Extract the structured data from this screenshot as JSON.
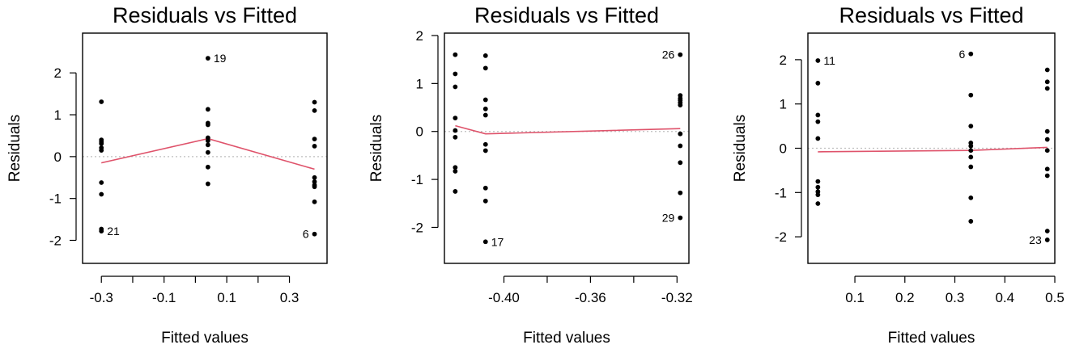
{
  "chart_data": [
    {
      "type": "scatter",
      "title": "Residuals vs Fitted",
      "xlabel": "Fitted values",
      "ylabel": "Residuals",
      "xlim": [
        -0.36,
        0.42
      ],
      "ylim": [
        -2.55,
        2.95
      ],
      "xticks": [
        -0.3,
        -0.2,
        -0.1,
        0.0,
        0.1,
        0.2,
        0.3
      ],
      "xtick_labels": [
        "-0.3",
        "",
        "-0.1",
        "",
        "0.1",
        "",
        "0.3"
      ],
      "yticks": [
        -2,
        -1,
        0,
        1,
        2
      ],
      "ytick_labels": [
        "-2",
        "-1",
        "0",
        "1",
        "2"
      ],
      "grid": false,
      "reference_line_y": 0,
      "points": [
        {
          "x": -0.3,
          "y": 1.31
        },
        {
          "x": -0.3,
          "y": 0.4
        },
        {
          "x": -0.3,
          "y": 0.35
        },
        {
          "x": -0.3,
          "y": 0.31
        },
        {
          "x": -0.3,
          "y": 0.21
        },
        {
          "x": -0.3,
          "y": 0.15
        },
        {
          "x": -0.3,
          "y": -0.62
        },
        {
          "x": -0.3,
          "y": -0.9
        },
        {
          "x": -0.3,
          "y": -1.73
        },
        {
          "x": -0.3,
          "y": -1.78
        },
        {
          "x": 0.04,
          "y": 2.35
        },
        {
          "x": 0.04,
          "y": 1.13
        },
        {
          "x": 0.04,
          "y": 0.8
        },
        {
          "x": 0.04,
          "y": 0.76
        },
        {
          "x": 0.04,
          "y": 0.45
        },
        {
          "x": 0.04,
          "y": 0.38
        },
        {
          "x": 0.04,
          "y": 0.28
        },
        {
          "x": 0.04,
          "y": 0.1
        },
        {
          "x": 0.04,
          "y": -0.25
        },
        {
          "x": 0.04,
          "y": -0.65
        },
        {
          "x": 0.38,
          "y": 1.3
        },
        {
          "x": 0.38,
          "y": 1.1
        },
        {
          "x": 0.38,
          "y": 0.42
        },
        {
          "x": 0.38,
          "y": 0.25
        },
        {
          "x": 0.38,
          "y": -0.5
        },
        {
          "x": 0.38,
          "y": -0.6
        },
        {
          "x": 0.38,
          "y": -0.68
        },
        {
          "x": 0.38,
          "y": -0.72
        },
        {
          "x": 0.38,
          "y": -1.08
        },
        {
          "x": 0.38,
          "y": -1.85
        }
      ],
      "smooth_line": [
        {
          "x": -0.3,
          "y": -0.15
        },
        {
          "x": 0.04,
          "y": 0.43
        },
        {
          "x": 0.38,
          "y": -0.3
        }
      ],
      "annotations": [
        {
          "text": "19",
          "x": 0.04,
          "y": 2.35,
          "side": "right"
        },
        {
          "text": "21",
          "x": -0.3,
          "y": -1.78,
          "side": "right"
        },
        {
          "text": "6",
          "x": 0.38,
          "y": -1.85,
          "side": "left"
        }
      ]
    },
    {
      "type": "scatter",
      "title": "Residuals vs Fitted",
      "xlabel": "Fitted values",
      "ylabel": "Residuals",
      "xlim": [
        -0.4275,
        -0.3145
      ],
      "ylim": [
        -2.75,
        2.05
      ],
      "xticks": [
        -0.4,
        -0.38,
        -0.36,
        -0.34,
        -0.32
      ],
      "xtick_labels": [
        "-0.40",
        "",
        "-0.36",
        "",
        "-0.32"
      ],
      "yticks": [
        -2,
        -1,
        0,
        1,
        2
      ],
      "ytick_labels": [
        "-2",
        "-1",
        "0",
        "1",
        "2"
      ],
      "grid": false,
      "reference_line_y": 0,
      "points": [
        {
          "x": -0.4225,
          "y": 1.6
        },
        {
          "x": -0.4225,
          "y": 1.2
        },
        {
          "x": -0.4225,
          "y": 0.93
        },
        {
          "x": -0.4225,
          "y": 0.28
        },
        {
          "x": -0.4225,
          "y": 0.02
        },
        {
          "x": -0.4225,
          "y": -0.12
        },
        {
          "x": -0.4225,
          "y": -0.75
        },
        {
          "x": -0.4225,
          "y": -0.83
        },
        {
          "x": -0.4225,
          "y": -1.25
        },
        {
          "x": -0.4085,
          "y": 1.58
        },
        {
          "x": -0.4085,
          "y": 1.32
        },
        {
          "x": -0.4085,
          "y": 0.66
        },
        {
          "x": -0.4085,
          "y": 0.47
        },
        {
          "x": -0.4085,
          "y": 0.34
        },
        {
          "x": -0.4085,
          "y": -0.27
        },
        {
          "x": -0.4085,
          "y": -0.4
        },
        {
          "x": -0.4085,
          "y": -1.18
        },
        {
          "x": -0.4085,
          "y": -1.45
        },
        {
          "x": -0.4085,
          "y": -2.3
        },
        {
          "x": -0.3185,
          "y": 1.6
        },
        {
          "x": -0.3185,
          "y": 0.75
        },
        {
          "x": -0.3185,
          "y": 0.69
        },
        {
          "x": -0.3185,
          "y": 0.65
        },
        {
          "x": -0.3185,
          "y": 0.6
        },
        {
          "x": -0.3185,
          "y": 0.55
        },
        {
          "x": -0.3185,
          "y": -0.05
        },
        {
          "x": -0.3185,
          "y": -0.3
        },
        {
          "x": -0.3185,
          "y": -0.65
        },
        {
          "x": -0.3185,
          "y": -1.28
        },
        {
          "x": -0.3185,
          "y": -1.8
        }
      ],
      "smooth_line": [
        {
          "x": -0.4225,
          "y": 0.12
        },
        {
          "x": -0.4085,
          "y": -0.05
        },
        {
          "x": -0.3185,
          "y": 0.06
        }
      ],
      "annotations": [
        {
          "text": "26",
          "x": -0.3185,
          "y": 1.6,
          "side": "left"
        },
        {
          "text": "17",
          "x": -0.4085,
          "y": -2.3,
          "side": "right"
        },
        {
          "text": "29",
          "x": -0.3185,
          "y": -1.8,
          "side": "left"
        }
      ]
    },
    {
      "type": "scatter",
      "title": "Residuals vs Fitted",
      "xlabel": "Fitted values",
      "ylabel": "Residuals",
      "xlim": [
        0.006,
        0.5
      ],
      "ylim": [
        -2.6,
        2.6
      ],
      "xticks": [
        0.1,
        0.2,
        0.3,
        0.4,
        0.5
      ],
      "xtick_labels": [
        "0.1",
        "0.2",
        "0.3",
        "0.4",
        "0.5"
      ],
      "yticks": [
        -2,
        -1,
        0,
        1,
        2
      ],
      "ytick_labels": [
        "-2",
        "-1",
        "0",
        "1",
        "2"
      ],
      "grid": false,
      "reference_line_y": 0,
      "points": [
        {
          "x": 0.026,
          "y": 1.98
        },
        {
          "x": 0.026,
          "y": 1.47
        },
        {
          "x": 0.026,
          "y": 0.75
        },
        {
          "x": 0.026,
          "y": 0.6
        },
        {
          "x": 0.026,
          "y": 0.22
        },
        {
          "x": 0.026,
          "y": -0.75
        },
        {
          "x": 0.026,
          "y": -0.88
        },
        {
          "x": 0.026,
          "y": -0.98
        },
        {
          "x": 0.026,
          "y": -1.05
        },
        {
          "x": 0.026,
          "y": -1.25
        },
        {
          "x": 0.332,
          "y": 2.13
        },
        {
          "x": 0.332,
          "y": 1.2
        },
        {
          "x": 0.332,
          "y": 0.5
        },
        {
          "x": 0.332,
          "y": 0.12
        },
        {
          "x": 0.332,
          "y": 0.05
        },
        {
          "x": 0.332,
          "y": -0.05
        },
        {
          "x": 0.332,
          "y": -0.2
        },
        {
          "x": 0.332,
          "y": -0.42
        },
        {
          "x": 0.332,
          "y": -1.12
        },
        {
          "x": 0.332,
          "y": -1.65
        },
        {
          "x": 0.485,
          "y": 1.77
        },
        {
          "x": 0.485,
          "y": 1.5
        },
        {
          "x": 0.485,
          "y": 1.35
        },
        {
          "x": 0.485,
          "y": 0.38
        },
        {
          "x": 0.485,
          "y": 0.2
        },
        {
          "x": 0.485,
          "y": -0.05
        },
        {
          "x": 0.485,
          "y": -0.47
        },
        {
          "x": 0.485,
          "y": -0.62
        },
        {
          "x": 0.485,
          "y": -1.87
        },
        {
          "x": 0.485,
          "y": -2.07
        }
      ],
      "smooth_line": [
        {
          "x": 0.026,
          "y": -0.08
        },
        {
          "x": 0.332,
          "y": -0.05
        },
        {
          "x": 0.485,
          "y": 0.02
        }
      ],
      "annotations": [
        {
          "text": "11",
          "x": 0.026,
          "y": 1.98,
          "side": "right"
        },
        {
          "text": "6",
          "x": 0.332,
          "y": 2.13,
          "side": "left"
        },
        {
          "text": "23",
          "x": 0.485,
          "y": -2.07,
          "side": "left"
        }
      ]
    }
  ],
  "colors": {
    "points": "#000000",
    "smooth_line": "#DF536B",
    "reference_line": "#BEBEBE",
    "box": "#000000"
  }
}
